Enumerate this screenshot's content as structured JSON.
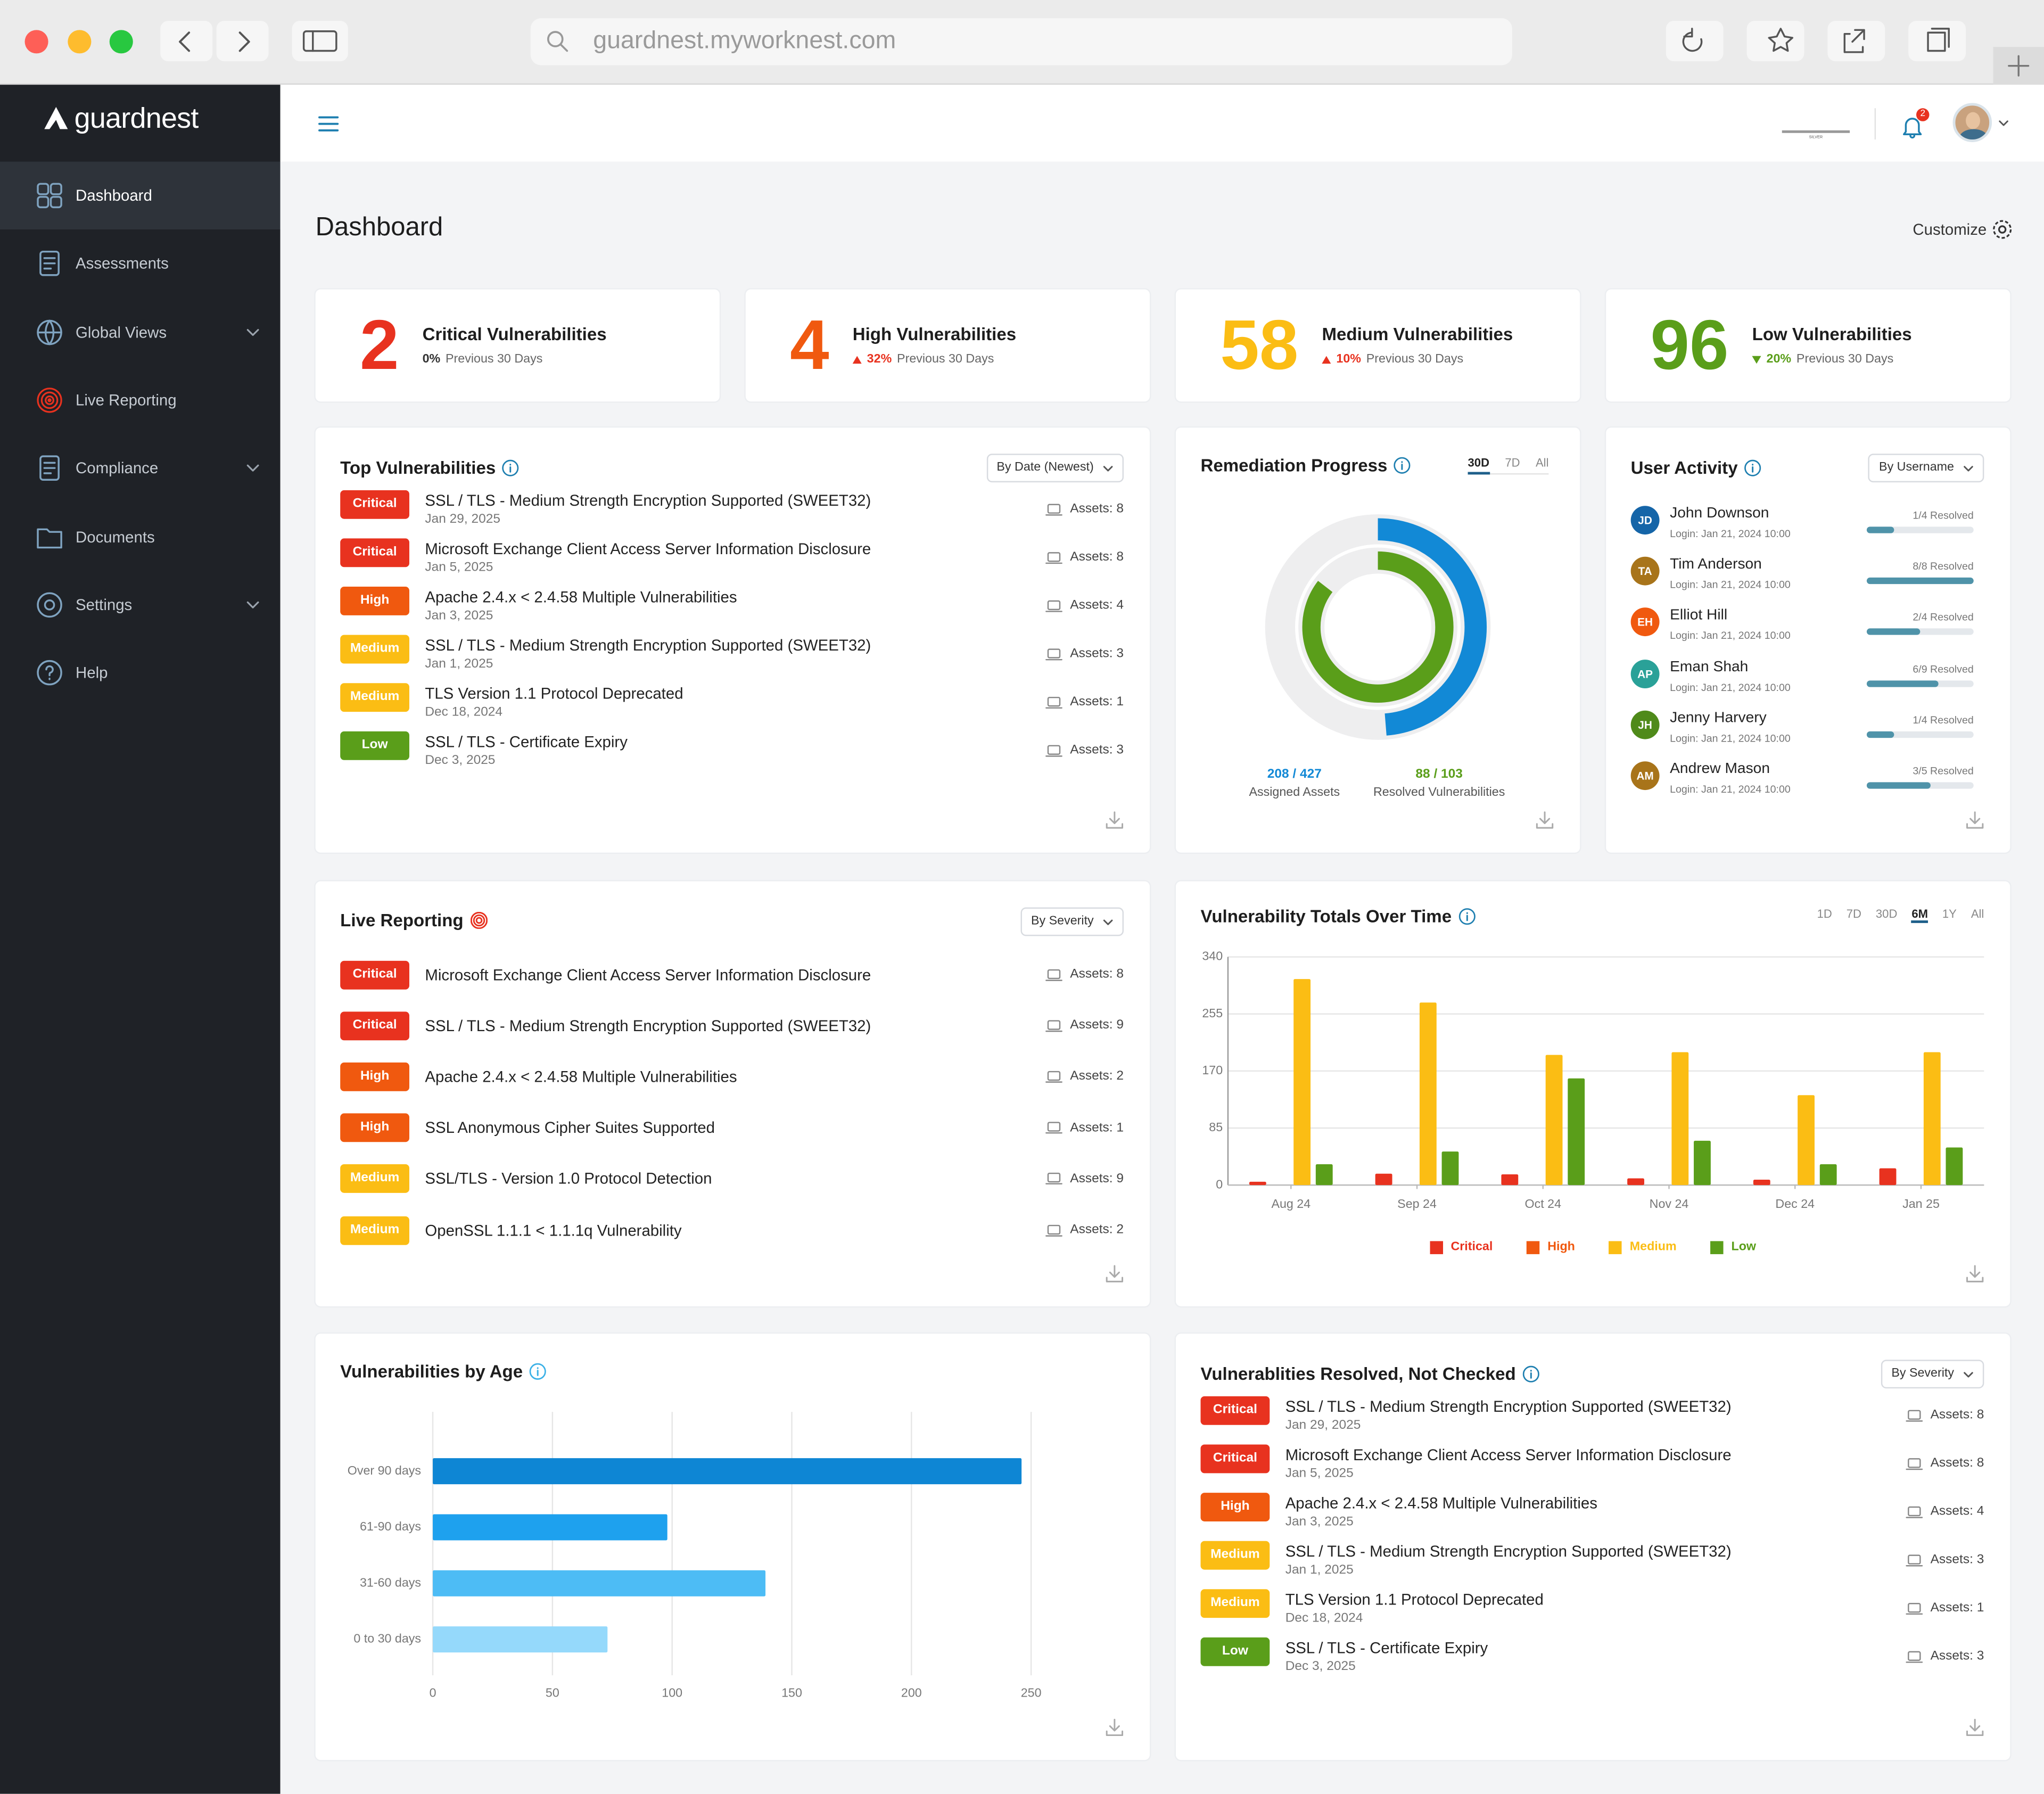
{
  "browser": {
    "url": "guardnest.myworknest.com"
  },
  "sidebar": {
    "logo": "guardnest",
    "active": 0,
    "items": [
      {
        "label": "Dashboard",
        "expandable": false
      },
      {
        "label": "Assessments",
        "expandable": false
      },
      {
        "label": "Global Views",
        "expandable": true
      },
      {
        "label": "Live Reporting",
        "expandable": false
      },
      {
        "label": "Compliance",
        "expandable": true
      },
      {
        "label": "Documents",
        "expandable": false
      },
      {
        "label": "Settings",
        "expandable": true
      },
      {
        "label": "Help",
        "expandable": false
      }
    ]
  },
  "header": {
    "plan_badge": "SILVER",
    "notification_count": 2
  },
  "page": {
    "title": "Dashboard",
    "customize": "Customize"
  },
  "severity_colors": {
    "Critical": "#e8321f",
    "High": "#f0590f",
    "Medium": "#fbbd14",
    "Low": "#5a9e1a"
  },
  "stats": [
    {
      "value": 2,
      "label": "Critical Vulnerabilities",
      "change": "0%",
      "trend": "none",
      "period": "Previous 30 Days",
      "color": "#e8321f"
    },
    {
      "value": 4,
      "label": "High Vulnerabilities",
      "change": "32%",
      "trend": "up",
      "period": "Previous 30 Days",
      "color": "#f0590f"
    },
    {
      "value": 58,
      "label": "Medium Vulnerabilities",
      "change": "10%",
      "trend": "up",
      "period": "Previous 30 Days",
      "color": "#fbbd14"
    },
    {
      "value": 96,
      "label": "Low Vulnerabilities",
      "change": "20%",
      "trend": "down",
      "period": "Previous 30 Days",
      "color": "#5a9e1a"
    }
  ],
  "top_vulnerabilities": {
    "title": "Top Vulnerabilities",
    "sort": "By Date (Newest)",
    "items": [
      {
        "severity": "Critical",
        "title": "SSL / TLS - Medium Strength Encryption Supported (SWEET32)",
        "date": "Jan 29, 2025",
        "assets": "Assets: 8"
      },
      {
        "severity": "Critical",
        "title": "Microsoft Exchange Client Access Server Information Disclosure",
        "date": "Jan 5, 2025",
        "assets": "Assets: 8"
      },
      {
        "severity": "High",
        "title": "Apache 2.4.x < 2.4.58 Multiple Vulnerabilities",
        "date": "Jan 3, 2025",
        "assets": "Assets: 4"
      },
      {
        "severity": "Medium",
        "title": "SSL / TLS - Medium Strength Encryption Supported (SWEET32)",
        "date": "Jan 1, 2025",
        "assets": "Assets: 3"
      },
      {
        "severity": "Medium",
        "title": "TLS Version 1.1 Protocol Deprecated",
        "date": "Dec 18, 2024",
        "assets": "Assets: 1"
      },
      {
        "severity": "Low",
        "title": "SSL / TLS - Certificate Expiry",
        "date": "Dec 3, 2025",
        "assets": "Assets: 3"
      }
    ]
  },
  "remediation": {
    "title": "Remediation Progress",
    "ranges": [
      "30D",
      "7D",
      "All"
    ],
    "active_range": 0,
    "rings": [
      {
        "value": 208,
        "total": 427,
        "label": "208 / 427",
        "caption": "Assigned Assets",
        "color": "#1289d6"
      },
      {
        "value": 88,
        "total": 103,
        "label": "88 / 103",
        "caption": "Resolved Vulnerabilities",
        "color": "#5a9e1a"
      }
    ]
  },
  "user_activity": {
    "title": "User Activity",
    "sort": "By Username",
    "bar_color": "#4f93a9",
    "users": [
      {
        "initials": "JD",
        "name": "John Downson",
        "login": "Login: Jan 21, 2024 10:00",
        "resolved": 1,
        "total": 4,
        "label": "1/4 Resolved",
        "color": "#1565a8"
      },
      {
        "initials": "TA",
        "name": "Tim Anderson",
        "login": "Login: Jan 21, 2024 10:00",
        "resolved": 8,
        "total": 8,
        "label": "8/8 Resolved",
        "color": "#a8741a"
      },
      {
        "initials": "EH",
        "name": "Elliot Hill",
        "login": "Login: Jan 21, 2024 10:00",
        "resolved": 2,
        "total": 4,
        "label": "2/4 Resolved",
        "color": "#f0590f"
      },
      {
        "initials": "AP",
        "name": "Eman Shah",
        "login": "Login: Jan 21, 2024 10:00",
        "resolved": 6,
        "total": 9,
        "label": "6/9 Resolved",
        "color": "#2aa198"
      },
      {
        "initials": "JH",
        "name": "Jenny Harvery",
        "login": "Login: Jan 21, 2024 10:00",
        "resolved": 1,
        "total": 4,
        "label": "1/4 Resolved",
        "color": "#4f8a1a"
      },
      {
        "initials": "AM",
        "name": "Andrew Mason",
        "login": "Login: Jan 21, 2024 10:00",
        "resolved": 3,
        "total": 5,
        "label": "3/5 Resolved",
        "color": "#a8741a"
      }
    ]
  },
  "live_reporting": {
    "title": "Live Reporting",
    "sort": "By Severity",
    "items": [
      {
        "severity": "Critical",
        "title": "Microsoft Exchange Client Access Server Information Disclosure",
        "assets": "Assets: 8"
      },
      {
        "severity": "Critical",
        "title": "SSL / TLS - Medium Strength Encryption Supported (SWEET32)",
        "assets": "Assets: 9"
      },
      {
        "severity": "High",
        "title": "Apache 2.4.x < 2.4.58 Multiple Vulnerabilities",
        "assets": "Assets: 2"
      },
      {
        "severity": "High",
        "title": "SSL Anonymous Cipher Suites Supported",
        "assets": "Assets: 1"
      },
      {
        "severity": "Medium",
        "title": "SSL/TLS - Version 1.0 Protocol Detection",
        "assets": "Assets: 9"
      },
      {
        "severity": "Medium",
        "title": "OpenSSL 1.1.1 < 1.1.1q Vulnerability",
        "assets": "Assets: 2"
      }
    ]
  },
  "totals_chart": {
    "type": "bar",
    "title": "Vulnerability Totals Over Time",
    "ranges": [
      "1D",
      "7D",
      "30D",
      "6M",
      "1Y",
      "All"
    ],
    "active_range": 3,
    "categories": [
      "Aug 24",
      "Sep 24",
      "Oct 24",
      "Nov 24",
      "Dec 24",
      "Jan 25"
    ],
    "series": [
      {
        "name": "Critical",
        "color": "#e8321f",
        "values": [
          5,
          17,
          16,
          10,
          8,
          25
        ]
      },
      {
        "name": "High",
        "color": "#f0590f",
        "values": [
          0,
          0,
          0,
          0,
          0,
          0
        ]
      },
      {
        "name": "Medium",
        "color": "#fbbd14",
        "values": [
          307,
          272,
          194,
          198,
          134,
          198
        ]
      },
      {
        "name": "Low",
        "color": "#5a9e1a",
        "values": [
          31,
          50,
          159,
          66,
          31,
          56
        ]
      }
    ],
    "ylim": [
      0,
      340
    ],
    "yticks": [
      0,
      85,
      170,
      255,
      340
    ],
    "grid": true
  },
  "age_chart": {
    "type": "bar",
    "orientation": "horizontal",
    "title": "Vulnerabilities by Age",
    "categories": [
      "Over 90 days",
      "61-90 days",
      "31-60 days",
      "0 to 30 days"
    ],
    "values": [
      246,
      98,
      139,
      73
    ],
    "colors": [
      "#0e86d4",
      "#1ea1ee",
      "#4dbcf5",
      "#95d9fb"
    ],
    "xlim": [
      0,
      250
    ],
    "xticks": [
      0,
      50,
      100,
      150,
      200,
      250
    ],
    "grid": true
  },
  "resolved_not_checked": {
    "title": "Vulnerablities Resolved, Not Checked",
    "sort": "By Severity",
    "items": [
      {
        "severity": "Critical",
        "title": "SSL / TLS - Medium Strength Encryption Supported (SWEET32)",
        "date": "Jan 29, 2025",
        "assets": "Assets: 8"
      },
      {
        "severity": "Critical",
        "title": "Microsoft Exchange Client Access Server Information Disclosure",
        "date": "Jan 5, 2025",
        "assets": "Assets: 8"
      },
      {
        "severity": "High",
        "title": "Apache 2.4.x < 2.4.58 Multiple Vulnerabilities",
        "date": "Jan 3, 2025",
        "assets": "Assets: 4"
      },
      {
        "severity": "Medium",
        "title": "SSL / TLS - Medium Strength Encryption Supported (SWEET32)",
        "date": "Jan 1, 2025",
        "assets": "Assets: 3"
      },
      {
        "severity": "Medium",
        "title": "TLS Version 1.1 Protocol Deprecated",
        "date": "Dec 18, 2024",
        "assets": "Assets: 1"
      },
      {
        "severity": "Low",
        "title": "SSL / TLS - Certificate Expiry",
        "date": "Dec 3, 2025",
        "assets": "Assets: 3"
      }
    ]
  }
}
